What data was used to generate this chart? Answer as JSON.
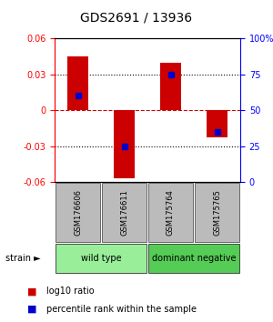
{
  "title": "GDS2691 / 13936",
  "samples": [
    "GSM176606",
    "GSM176611",
    "GSM175764",
    "GSM175765"
  ],
  "bar_values": [
    0.045,
    -0.057,
    0.04,
    -0.023
  ],
  "percentile_ranks": [
    0.6,
    0.25,
    0.75,
    0.35
  ],
  "ylim_left": [
    -0.06,
    0.06
  ],
  "yticks_left": [
    -0.06,
    -0.03,
    0.0,
    0.03,
    0.06
  ],
  "ytick_labels_left": [
    "-0.06",
    "-0.03",
    "0",
    "0.03",
    "0.06"
  ],
  "yticks_right": [
    0,
    25,
    50,
    75,
    100
  ],
  "ytick_labels_right": [
    "0",
    "25",
    "50",
    "75",
    "100%"
  ],
  "bar_color": "#cc0000",
  "dot_color": "#0000cc",
  "hline_zero_color": "#cc0000",
  "hline_zero_style": "--",
  "hline_grid_color": "#000000",
  "hline_grid_style": ":",
  "strain_groups": [
    {
      "label": "wild type",
      "color": "#99ee99",
      "start": 0,
      "end": 2
    },
    {
      "label": "dominant negative",
      "color": "#55cc55",
      "start": 2,
      "end": 4
    }
  ],
  "legend_items": [
    {
      "color": "#cc0000",
      "label": "log10 ratio"
    },
    {
      "color": "#0000cc",
      "label": "percentile rank within the sample"
    }
  ],
  "strain_label": "strain",
  "bg_color": "#ffffff",
  "sample_box_color": "#bbbbbb",
  "left_axis_color": "red",
  "right_axis_color": "blue",
  "bar_width": 0.45,
  "dot_size": 5
}
